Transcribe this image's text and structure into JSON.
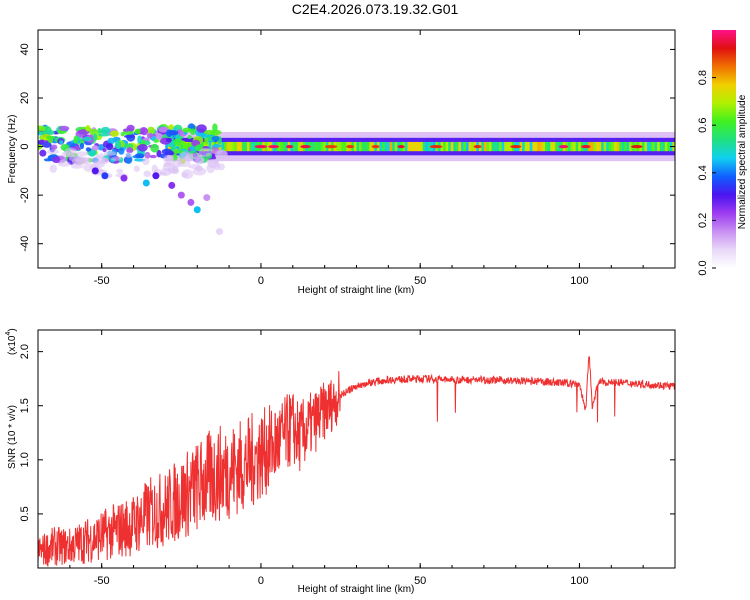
{
  "title": "C2E4.2026.073.19.32.G01",
  "chart_data": [
    {
      "type": "heatmap",
      "xlabel": "Height of straight line (km)",
      "ylabel": "Frequency (Hz)",
      "xlim": [
        -70,
        130
      ],
      "ylim": [
        -50,
        48
      ],
      "x_ticks": [
        -50,
        0,
        50,
        100
      ],
      "y_ticks": [
        40,
        20,
        0,
        -20,
        -40
      ],
      "colorbar": {
        "label": "Normalized spectral amplitude",
        "range": [
          0,
          1
        ],
        "ticks": [
          "0.0",
          "0.2",
          "0.4",
          "0.6",
          "0.8"
        ],
        "tick_values": [
          0.0,
          0.2,
          0.4,
          0.6,
          0.8
        ]
      },
      "colormap": [
        "#ffffff",
        "#e8d8f8",
        "#c88ef2",
        "#9c3cf0",
        "#4a14f0",
        "#1060ff",
        "#10d0f0",
        "#20e080",
        "#40f020",
        "#b0f000",
        "#f0d000",
        "#f07000",
        "#e01010",
        "#ff1088"
      ],
      "tone_band": {
        "center_hz": 0,
        "half_width_hz": 2,
        "start_km": -30,
        "end_km": 130,
        "amplitude_range": [
          0.45,
          0.8
        ]
      },
      "noise_region": {
        "start_km": -70,
        "end_km": -25,
        "freq_range_hz": [
          -6,
          8
        ]
      },
      "trail_blobs": [
        {
          "x": -52,
          "y": -10,
          "a": 0.3
        },
        {
          "x": -49,
          "y": -12,
          "a": 0.35
        },
        {
          "x": -43,
          "y": -13,
          "a": 0.25
        },
        {
          "x": -36,
          "y": -15,
          "a": 0.45
        },
        {
          "x": -33,
          "y": -12,
          "a": 0.3
        },
        {
          "x": -28,
          "y": -16,
          "a": 0.25
        },
        {
          "x": -25,
          "y": -20,
          "a": 0.2
        },
        {
          "x": -22,
          "y": -23,
          "a": 0.2
        },
        {
          "x": -20,
          "y": -26,
          "a": 0.45
        },
        {
          "x": -17,
          "y": -21,
          "a": 0.15
        },
        {
          "x": -13,
          "y": -35,
          "a": 0.08
        }
      ]
    },
    {
      "type": "line",
      "xlabel": "Height of straight line (km)",
      "ylabel": "SNR (10 * v/v)",
      "y_multiplier": "(x10",
      "y_multiplier_exp": "4",
      "y_multiplier_close": ")",
      "xlim": [
        -70,
        130
      ],
      "ylim": [
        0,
        2.2
      ],
      "x_ticks": [
        -50,
        0,
        50,
        100
      ],
      "y_ticks": [
        0.5,
        1.0,
        1.5,
        2.0
      ],
      "y_tick_labels": [
        "0.5",
        "1.0",
        "1.5",
        "2.0"
      ],
      "color": "#ee3030",
      "series": [
        {
          "name": "SNR",
          "x": [
            -70,
            -65,
            -60,
            -55,
            -50,
            -45,
            -40,
            -35,
            -30,
            -25,
            -20,
            -15,
            -10,
            -5,
            0,
            5,
            10,
            12,
            15,
            20,
            25,
            30,
            35,
            40,
            50,
            60,
            70,
            80,
            90,
            100,
            102,
            103,
            104,
            106,
            110,
            120,
            130
          ],
          "y": [
            0.15,
            0.2,
            0.2,
            0.25,
            0.3,
            0.35,
            0.4,
            0.5,
            0.55,
            0.65,
            0.75,
            0.85,
            0.9,
            0.95,
            1.05,
            1.15,
            1.3,
            1.2,
            1.3,
            1.45,
            1.6,
            1.68,
            1.72,
            1.74,
            1.75,
            1.74,
            1.74,
            1.73,
            1.72,
            1.7,
            1.45,
            2.0,
            1.5,
            1.72,
            1.72,
            1.7,
            1.68
          ]
        }
      ]
    }
  ]
}
